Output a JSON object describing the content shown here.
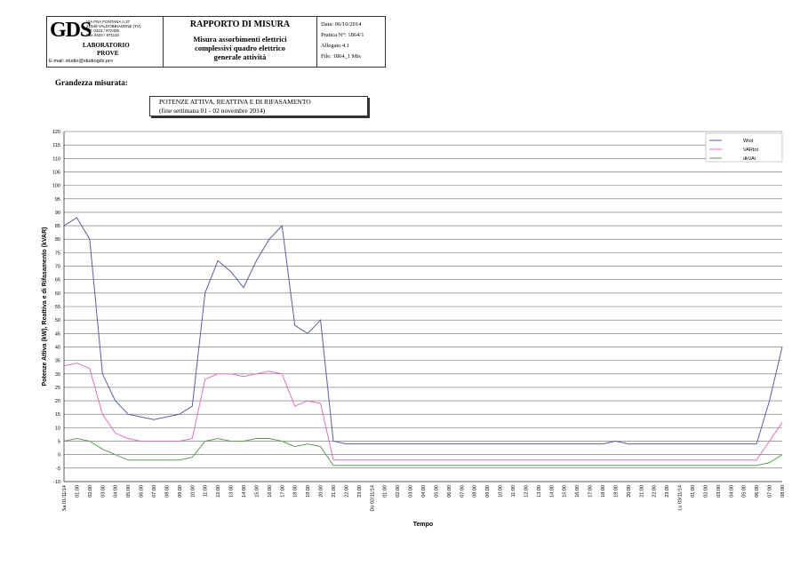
{
  "header": {
    "logo": "GDS",
    "address": [
      "VIA FRA FONTANA n.37",
      "31049 VALDOBBIADENE (TV)",
      "Tel. 0423 / 972405",
      "Fax 0423 / 971110"
    ],
    "lab": "LABORATORIO",
    "prove": "PROVE",
    "email": "E-mail: studio@studiogds.pro",
    "title": "RAPPORTO DI MISURA",
    "subtitle": [
      "Misura assorbimenti elettrici",
      "complessivi quadro elettrico",
      "generale attività"
    ],
    "info": [
      "Data: 06/10/2014",
      "Pratica N°: 1864/1",
      "Allegato 4.1",
      "File: 1864_1 Mis"
    ]
  },
  "measure_label": "Grandezza misurata:",
  "chart_data": {
    "type": "line",
    "title": "POTENZE ATTIVA, REATTIVA E DI RIFASAMENTO",
    "subtitle": "(fine settimana 01 - 02 novembre 2014)",
    "y_label": "Potenze Attiva (kW), Reattiva e di Rifasamento (kVAR)",
    "x_label": "Tempo",
    "legend": "top-right",
    "grid": true,
    "categories": [
      "Sa 01/11/14",
      "01:00",
      "02:00",
      "03:00",
      "04:00",
      "05:00",
      "06:00",
      "07:00",
      "08:00",
      "09:00",
      "10:00",
      "11:00",
      "12:00",
      "13:00",
      "14:00",
      "15:00",
      "16:00",
      "17:00",
      "18:00",
      "19:00",
      "20:00",
      "21:00",
      "22:00",
      "23:00",
      "Do 02/11/14",
      "01:00",
      "02:00",
      "03:00",
      "04:00",
      "05:00",
      "06:00",
      "07:00",
      "08:00",
      "09:00",
      "10:00",
      "11:00",
      "12:00",
      "13:00",
      "14:00",
      "15:00",
      "16:00",
      "17:00",
      "18:00",
      "19:00",
      "20:00",
      "21:00",
      "22:00",
      "23:00",
      "Lu 03/11/14",
      "01:00",
      "02:00",
      "03:00",
      "04:00",
      "05:00",
      "06:00",
      "07:00",
      "08:00"
    ],
    "ylim": [
      -10,
      120
    ],
    "yticks": [
      -10,
      -5,
      0,
      5,
      10,
      15,
      20,
      25,
      30,
      35,
      40,
      45,
      50,
      55,
      60,
      65,
      70,
      75,
      80,
      85,
      90,
      95,
      100,
      105,
      110,
      115,
      120
    ],
    "series": [
      {
        "name": "Wtot",
        "color": "#5a5fa8",
        "values": [
          85,
          88,
          80,
          30,
          20,
          15,
          14,
          13,
          14,
          15,
          18,
          60,
          72,
          68,
          62,
          72,
          80,
          85,
          48,
          45,
          50,
          5,
          4,
          4,
          4,
          4,
          4,
          4,
          4,
          4,
          4,
          4,
          4,
          4,
          4,
          4,
          4,
          4,
          4,
          4,
          4,
          4,
          4,
          5,
          4,
          4,
          4,
          4,
          4,
          4,
          4,
          4,
          4,
          4,
          4,
          20,
          40
        ]
      },
      {
        "name": "VARtot",
        "color": "#e070c0",
        "values": [
          33,
          34,
          32,
          15,
          8,
          6,
          5,
          5,
          5,
          5,
          6,
          28,
          30,
          30,
          29,
          30,
          31,
          30,
          18,
          20,
          19,
          -2,
          -2,
          -2,
          -2,
          -2,
          -2,
          -2,
          -2,
          -2,
          -2,
          -2,
          -2,
          -2,
          -2,
          -2,
          -2,
          -2,
          -2,
          -2,
          -2,
          -2,
          -2,
          -2,
          -2,
          -2,
          -2,
          -2,
          -2,
          -2,
          -2,
          -2,
          -2,
          -2,
          -2,
          5,
          12
        ]
      },
      {
        "name": "dkVAr",
        "color": "#5aa050",
        "values": [
          5,
          6,
          5,
          2,
          0,
          -2,
          -2,
          -2,
          -2,
          -2,
          -1,
          5,
          6,
          5,
          5,
          6,
          6,
          5,
          3,
          4,
          3,
          -4,
          -4,
          -4,
          -4,
          -4,
          -4,
          -4,
          -4,
          -4,
          -4,
          -4,
          -4,
          -4,
          -4,
          -4,
          -4,
          -4,
          -4,
          -4,
          -4,
          -4,
          -4,
          -4,
          -4,
          -4,
          -4,
          -4,
          -4,
          -4,
          -4,
          -4,
          -4,
          -4,
          -4,
          -3,
          0
        ]
      }
    ]
  }
}
